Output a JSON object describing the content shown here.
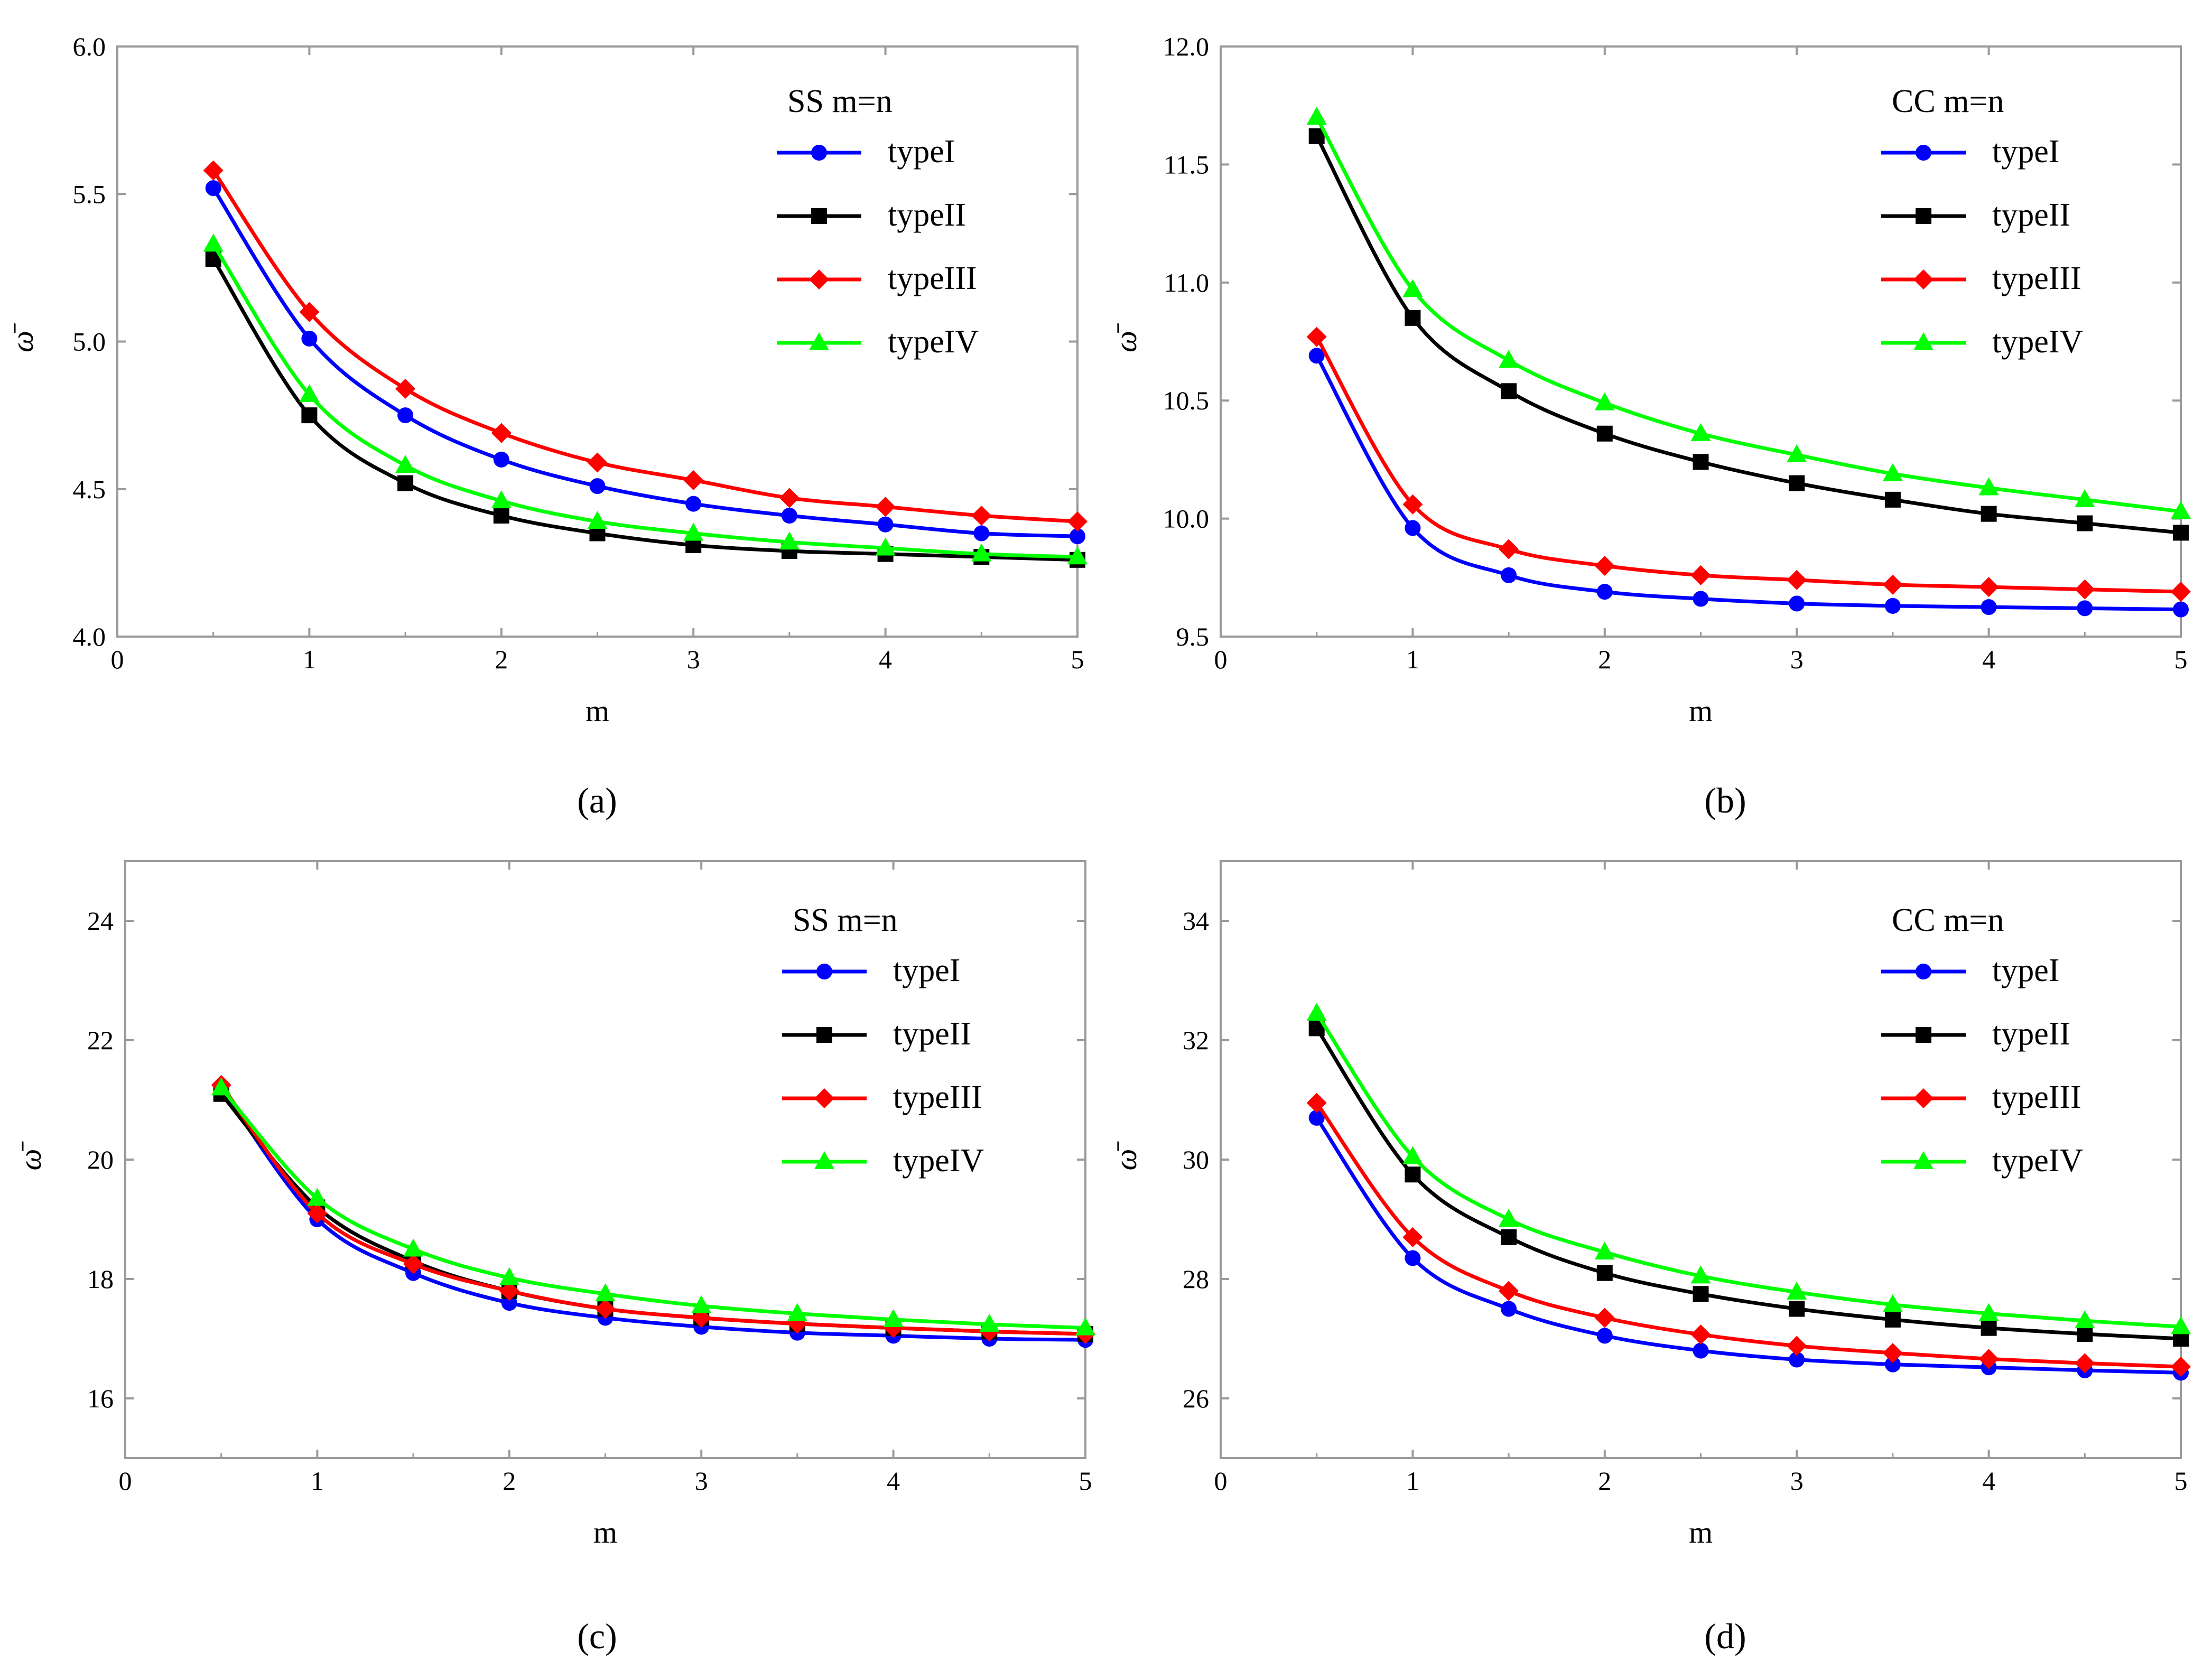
{
  "figure_title": "",
  "chart_data": [
    {
      "type": "line",
      "caption": "(a)",
      "title": "",
      "xlabel": "m",
      "ylabel": "ω̄",
      "legend_title": "SS   m=n",
      "xlim": [
        0,
        5
      ],
      "ylim": [
        4.0,
        6.0
      ],
      "x_ticks": [
        0,
        1,
        2,
        3,
        4,
        5
      ],
      "y_ticks": [
        4.0,
        4.5,
        5.0,
        5.5,
        6.0
      ],
      "y_tick_labels": [
        "4.0",
        "4.5",
        "5.0",
        "5.5",
        "6.0"
      ],
      "x": [
        0.5,
        1,
        1.5,
        2,
        2.5,
        3,
        3.5,
        4,
        4.5,
        5
      ],
      "series": [
        {
          "name": "typeI",
          "color": "#0000ff",
          "marker": "circle",
          "values": [
            5.52,
            5.01,
            4.75,
            4.6,
            4.51,
            4.45,
            4.41,
            4.38,
            4.35,
            4.34
          ]
        },
        {
          "name": "typeII",
          "color": "#000000",
          "marker": "square",
          "values": [
            5.28,
            4.75,
            4.52,
            4.41,
            4.35,
            4.31,
            4.29,
            4.28,
            4.27,
            4.26
          ]
        },
        {
          "name": "typeIII",
          "color": "#ff0000",
          "marker": "diamond",
          "values": [
            5.58,
            5.1,
            4.84,
            4.69,
            4.59,
            4.53,
            4.47,
            4.44,
            4.41,
            4.39
          ]
        },
        {
          "name": "typeIV",
          "color": "#00ff00",
          "marker": "triangle",
          "values": [
            5.33,
            4.82,
            4.58,
            4.46,
            4.39,
            4.35,
            4.32,
            4.3,
            4.28,
            4.27
          ]
        }
      ]
    },
    {
      "type": "line",
      "caption": "(b)",
      "title": "",
      "xlabel": "m",
      "ylabel": "ω̄",
      "legend_title": "CC   m=n",
      "xlim": [
        0,
        5
      ],
      "ylim": [
        9.5,
        12.0
      ],
      "x_ticks": [
        0,
        1,
        2,
        3,
        4,
        5
      ],
      "y_ticks": [
        9.5,
        10.0,
        10.5,
        11.0,
        11.5,
        12.0
      ],
      "y_tick_labels": [
        "9.5",
        "10.0",
        "10.5",
        "11.0",
        "11.5",
        "12.0"
      ],
      "x": [
        0.5,
        1,
        1.5,
        2,
        2.5,
        3,
        3.5,
        4,
        4.5,
        5
      ],
      "series": [
        {
          "name": "typeI",
          "color": "#0000ff",
          "marker": "circle",
          "values": [
            10.69,
            9.96,
            9.76,
            9.69,
            9.66,
            9.64,
            9.63,
            9.625,
            9.62,
            9.615
          ]
        },
        {
          "name": "typeII",
          "color": "#000000",
          "marker": "square",
          "values": [
            11.62,
            10.85,
            10.54,
            10.36,
            10.24,
            10.15,
            10.08,
            10.02,
            9.98,
            9.94
          ]
        },
        {
          "name": "typeIII",
          "color": "#ff0000",
          "marker": "diamond",
          "values": [
            10.77,
            10.06,
            9.87,
            9.8,
            9.76,
            9.74,
            9.72,
            9.71,
            9.7,
            9.69
          ]
        },
        {
          "name": "typeIV",
          "color": "#00ff00",
          "marker": "triangle",
          "values": [
            11.7,
            10.97,
            10.67,
            10.49,
            10.36,
            10.27,
            10.19,
            10.13,
            10.08,
            10.03
          ]
        }
      ]
    },
    {
      "type": "line",
      "caption": "(c)",
      "title": "",
      "xlabel": "m",
      "ylabel": "ω̄",
      "legend_title": "SS   m=n",
      "xlim": [
        0,
        5
      ],
      "ylim": [
        15,
        25
      ],
      "x_ticks": [
        0,
        1,
        2,
        3,
        4,
        5
      ],
      "y_ticks": [
        16,
        18,
        20,
        22,
        24
      ],
      "y_tick_labels": [
        "16",
        "18",
        "20",
        "22",
        "24"
      ],
      "x": [
        0.5,
        1,
        1.5,
        2,
        2.5,
        3,
        3.5,
        4,
        4.5,
        5
      ],
      "series": [
        {
          "name": "typeI",
          "color": "#0000ff",
          "marker": "circle",
          "values": [
            21.2,
            19.0,
            18.1,
            17.6,
            17.35,
            17.2,
            17.1,
            17.05,
            17.0,
            16.98
          ]
        },
        {
          "name": "typeII",
          "color": "#000000",
          "marker": "square",
          "values": [
            21.1,
            19.2,
            18.3,
            17.8,
            17.5,
            17.35,
            17.25,
            17.18,
            17.12,
            17.08
          ]
        },
        {
          "name": "typeIII",
          "color": "#ff0000",
          "marker": "diamond",
          "values": [
            21.25,
            19.1,
            18.25,
            17.8,
            17.5,
            17.35,
            17.25,
            17.18,
            17.12,
            17.08
          ]
        },
        {
          "name": "typeIV",
          "color": "#00ff00",
          "marker": "triangle",
          "values": [
            21.2,
            19.35,
            18.5,
            18.02,
            17.75,
            17.55,
            17.42,
            17.32,
            17.24,
            17.18
          ]
        }
      ]
    },
    {
      "type": "line",
      "caption": "(d)",
      "title": "",
      "xlabel": "m",
      "ylabel": "ω̄",
      "legend_title": "CC   m=n",
      "xlim": [
        0,
        5
      ],
      "ylim": [
        25,
        35
      ],
      "x_ticks": [
        0,
        1,
        2,
        3,
        4,
        5
      ],
      "y_ticks": [
        26,
        28,
        30,
        32,
        34
      ],
      "y_tick_labels": [
        "26",
        "28",
        "30",
        "32",
        "34"
      ],
      "x": [
        0.5,
        1,
        1.5,
        2,
        2.5,
        3,
        3.5,
        4,
        4.5,
        5
      ],
      "series": [
        {
          "name": "typeI",
          "color": "#0000ff",
          "marker": "circle",
          "values": [
            30.7,
            28.35,
            27.5,
            27.05,
            26.8,
            26.65,
            26.57,
            26.52,
            26.47,
            26.43
          ]
        },
        {
          "name": "typeII",
          "color": "#000000",
          "marker": "square",
          "values": [
            32.2,
            29.75,
            28.7,
            28.1,
            27.75,
            27.5,
            27.32,
            27.18,
            27.08,
            27.0
          ]
        },
        {
          "name": "typeIII",
          "color": "#ff0000",
          "marker": "diamond",
          "values": [
            30.95,
            28.7,
            27.8,
            27.35,
            27.07,
            26.88,
            26.76,
            26.66,
            26.59,
            26.53
          ]
        },
        {
          "name": "typeIV",
          "color": "#00ff00",
          "marker": "triangle",
          "values": [
            32.45,
            30.05,
            29.0,
            28.45,
            28.05,
            27.78,
            27.57,
            27.42,
            27.3,
            27.2
          ]
        }
      ]
    }
  ]
}
